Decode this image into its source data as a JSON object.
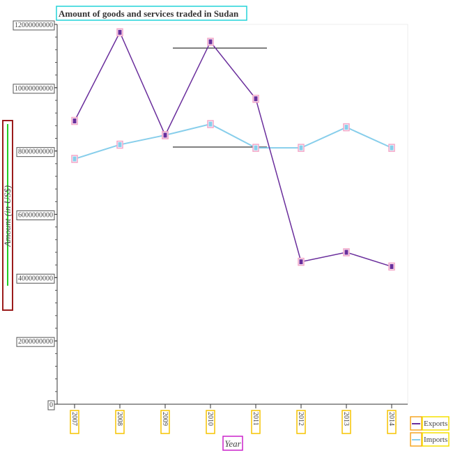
{
  "chart_data": {
    "type": "line",
    "title": "Amount of goods and services traded in Sudan",
    "xlabel": "Year",
    "ylabel": "Amount (in US$)",
    "categories": [
      "2007",
      "2008",
      "2009",
      "2010",
      "2011",
      "2012",
      "2013",
      "2014"
    ],
    "ylim": [
      0,
      12000000000
    ],
    "yticks": [
      {
        "value": 0,
        "label": "0"
      },
      {
        "value": 2000000000,
        "label": "2000000000"
      },
      {
        "value": 4000000000,
        "label": "4000000000"
      },
      {
        "value": 6000000000,
        "label": "6000000000"
      },
      {
        "value": 8000000000,
        "label": "8000000000"
      },
      {
        "value": 10000000000,
        "label": "10000000000"
      },
      {
        "value": 12000000000,
        "label": "12000000000"
      }
    ],
    "grid": false,
    "legend_position": "bottom-right",
    "series": [
      {
        "name": "Exports",
        "color": "#6a2e9c",
        "values": [
          8950000000,
          11750000000,
          8500000000,
          11450000000,
          9650000000,
          4500000000,
          4800000000,
          4350000000
        ]
      },
      {
        "name": "Imports",
        "color": "#87ceeb",
        "values": [
          7750000000,
          8200000000,
          8500000000,
          8850000000,
          8100000000,
          8100000000,
          8750000000,
          8100000000
        ]
      }
    ]
  }
}
